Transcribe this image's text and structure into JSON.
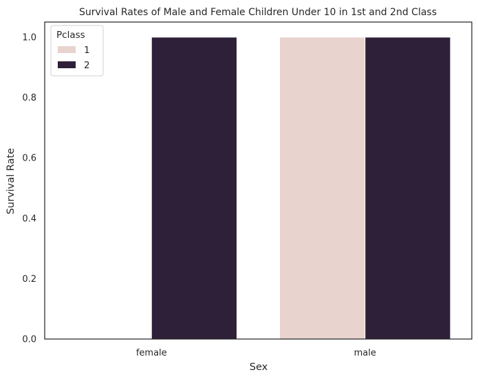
{
  "chart_data": {
    "type": "bar",
    "title": "Survival Rates of Male and Female Children Under 10 in 1st and 2nd Class",
    "xlabel": "Sex",
    "ylabel": "Survival Rate",
    "categories": [
      "female",
      "male"
    ],
    "series": [
      {
        "name": "1",
        "values": [
          0.0,
          1.0
        ],
        "color": "#e8d3cf"
      },
      {
        "name": "2",
        "values": [
          1.0,
          1.0
        ],
        "color": "#2e2039"
      }
    ],
    "ylim": [
      0,
      1.05
    ],
    "yticks": [
      0.0,
      0.2,
      0.4,
      0.6,
      0.8,
      1.0
    ],
    "ytick_labels": [
      "0.0",
      "0.2",
      "0.4",
      "0.6",
      "0.8",
      "1.0"
    ],
    "grid": false,
    "legend": {
      "title": "Pclass",
      "placement": "top-left"
    }
  }
}
